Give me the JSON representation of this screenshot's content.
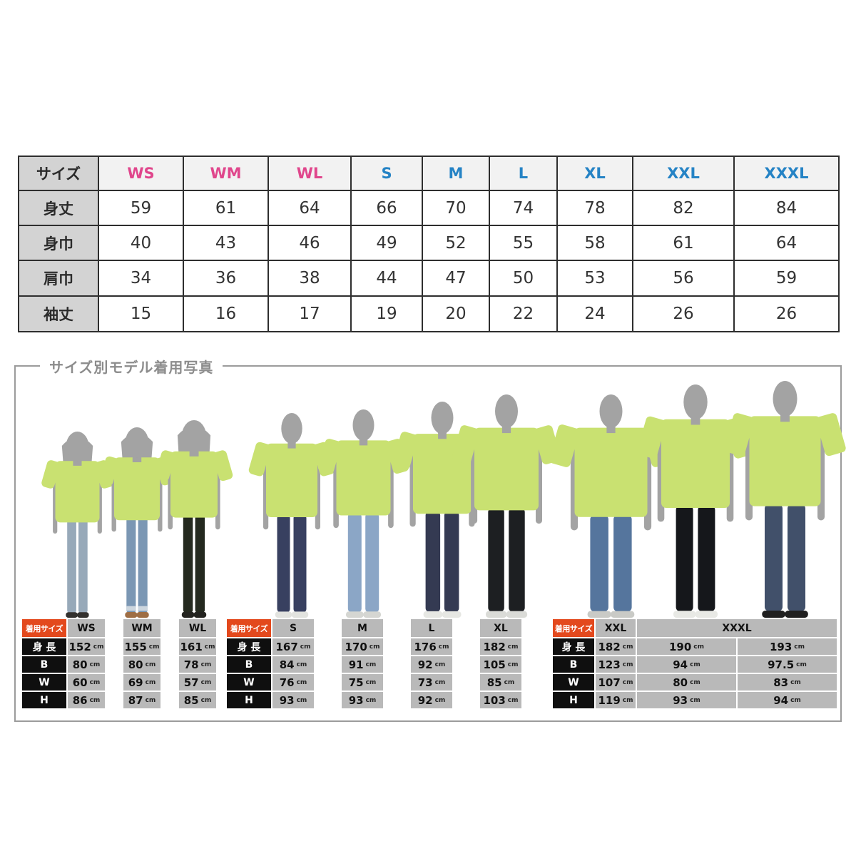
{
  "size_table": {
    "corner_label": "サイズ",
    "columns": [
      {
        "label": "WS",
        "group": "women"
      },
      {
        "label": "WM",
        "group": "women"
      },
      {
        "label": "WL",
        "group": "women"
      },
      {
        "label": "S",
        "group": "men"
      },
      {
        "label": "M",
        "group": "men"
      },
      {
        "label": "L",
        "group": "men"
      },
      {
        "label": "XL",
        "group": "men"
      },
      {
        "label": "XXL",
        "group": "men"
      },
      {
        "label": "XXXL",
        "group": "men"
      }
    ],
    "group_colors": {
      "women": "#e0468c",
      "men": "#2583c5"
    },
    "rows": [
      {
        "label": "身丈",
        "values": [
          59,
          61,
          64,
          66,
          70,
          74,
          78,
          82,
          84
        ]
      },
      {
        "label": "身巾",
        "values": [
          40,
          43,
          46,
          49,
          52,
          55,
          58,
          61,
          64
        ]
      },
      {
        "label": "肩巾",
        "values": [
          34,
          36,
          38,
          44,
          47,
          50,
          53,
          56,
          59
        ]
      },
      {
        "label": "袖丈",
        "values": [
          15,
          16,
          17,
          19,
          20,
          22,
          24,
          26,
          26
        ]
      }
    ]
  },
  "model_section": {
    "title": "サイズ別モデル着用写真",
    "shirt_color": "#c9e171",
    "skin_color": "#a3a3a3",
    "models": [
      {
        "size": "WS",
        "height_cm": 152,
        "gender": "female",
        "hair": "mid",
        "pants": "#97a9b9",
        "shoes": "#33312e"
      },
      {
        "size": "WM",
        "height_cm": 155,
        "gender": "female",
        "hair": "mid",
        "pants": "#7b97b4",
        "cuff": "#cdd6de",
        "shoes": "#9e6e45"
      },
      {
        "size": "WL",
        "height_cm": 161,
        "gender": "female",
        "hair": "long",
        "pants": "#24291f",
        "shoes": "#23231f"
      },
      {
        "size": "S",
        "height_cm": 167,
        "gender": "male",
        "pants": "#384060",
        "shoes": "#e2e3df"
      },
      {
        "size": "M",
        "height_cm": 170,
        "gender": "male",
        "pants": "#8ba6c6",
        "shoes": "#d5d6d2"
      },
      {
        "size": "L",
        "height_cm": 176,
        "gender": "male",
        "pants": "#343a52",
        "shoes": "#e6e7e3"
      },
      {
        "size": "XL",
        "height_cm": 182,
        "gender": "male",
        "pants": "#1d1f22",
        "shoes": "#dadbd7"
      },
      {
        "size": "XXL",
        "height_cm": 182,
        "gender": "male",
        "pants": "#55759d",
        "shoes": "#c9cac6"
      },
      {
        "size": "XXXL",
        "height_cm": 190,
        "gender": "male",
        "pants": "#15171b",
        "shoes": "#e8e9e5"
      },
      {
        "size": "XXXL",
        "height_cm": 193,
        "gender": "male",
        "pants": "#41506a",
        "shoes": "#202020"
      }
    ],
    "spec_tables": {
      "corner_label": "着用サイズ",
      "row_labels": [
        "身 長",
        "B",
        "W",
        "H"
      ],
      "unit": "cm",
      "groups": [
        {
          "columns": [
            {
              "label": "WS"
            },
            {
              "label": "WM"
            },
            {
              "label": "WL"
            }
          ],
          "rows": [
            [
              "152",
              "155",
              "161"
            ],
            [
              "80",
              "80",
              "78"
            ],
            [
              "60",
              "69",
              "57"
            ],
            [
              "86",
              "87",
              "85"
            ]
          ]
        },
        {
          "columns": [
            {
              "label": "S"
            },
            {
              "label": "M"
            },
            {
              "label": "L"
            },
            {
              "label": "XL"
            }
          ],
          "rows": [
            [
              "167",
              "170",
              "176",
              "182"
            ],
            [
              "84",
              "91",
              "92",
              "105"
            ],
            [
              "76",
              "75",
              "73",
              "85"
            ],
            [
              "93",
              "93",
              "92",
              "103"
            ]
          ]
        },
        {
          "columns": [
            {
              "label": "XXL"
            },
            {
              "label": "XXXL",
              "span": 2
            }
          ],
          "rows": [
            [
              "182",
              "190",
              "193"
            ],
            [
              "123",
              "94",
              "97.5"
            ],
            [
              "107",
              "80",
              "83"
            ],
            [
              "119",
              "93",
              "94"
            ]
          ]
        }
      ]
    }
  }
}
